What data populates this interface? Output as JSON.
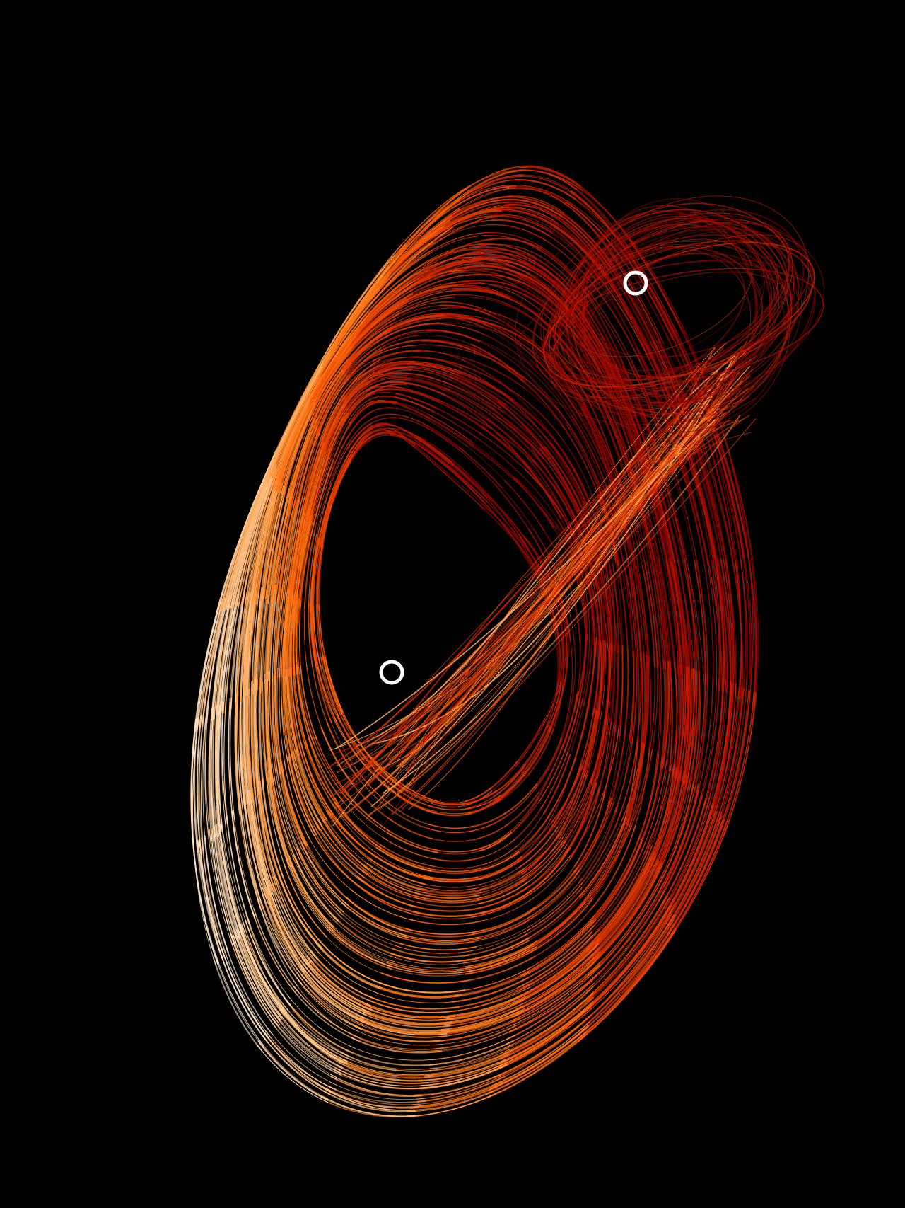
{
  "scene": {
    "subject": "strange-attractor",
    "background_color": "#000000",
    "orbit_palette": [
      "#4a0000",
      "#8b0000",
      "#c41a00",
      "#e63c00",
      "#ff6a0a",
      "#ffa04a",
      "#ffd9b0",
      "#fff4e8"
    ],
    "marker_color": "#ffffff",
    "markers": [
      {
        "name": "fixed-point-upper-right-marker",
        "icon": "ring"
      },
      {
        "name": "fixed-point-center-marker",
        "icon": "ring"
      }
    ]
  }
}
